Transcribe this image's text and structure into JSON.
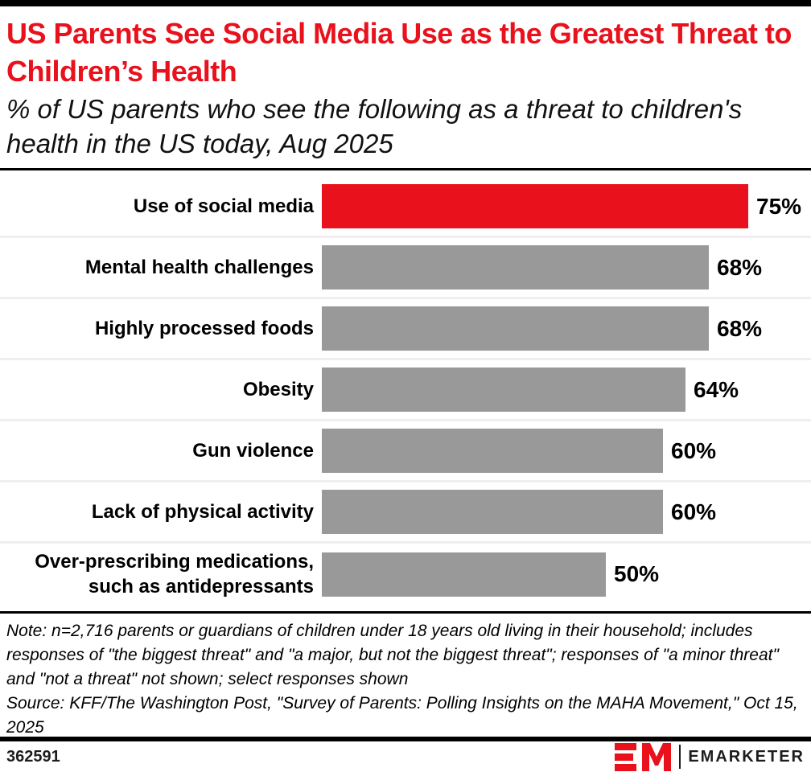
{
  "header": {
    "title": "US Parents See Social Media Use as the Greatest Threat to Children’s Health",
    "subtitle": "% of US parents who see the following as a threat to children's health in the US today, Aug 2025"
  },
  "chart_data": {
    "type": "bar",
    "orientation": "horizontal",
    "title": "US Parents See Social Media Use as the Greatest Threat to Children’s Health",
    "subtitle": "% of US parents who see the following as a threat to children's health in the US today, Aug 2025",
    "categories": [
      "Use of social media",
      "Mental health challenges",
      "Highly processed foods",
      "Obesity",
      "Gun violence",
      "Lack of physical activity",
      "Over-prescribing medications, such as antidepressants"
    ],
    "values": [
      75,
      68,
      68,
      64,
      60,
      60,
      50
    ],
    "value_labels": [
      "75%",
      "68%",
      "68%",
      "64%",
      "60%",
      "60%",
      "50%"
    ],
    "xlim": [
      0,
      100
    ],
    "axis_visible": false,
    "grid": false,
    "legend": false,
    "highlight_index": 0,
    "colors": {
      "highlight": "#e8111c",
      "default": "#999999"
    }
  },
  "footnotes": {
    "note": "Note: n=2,716 parents or guardians of children under 18 years old living in their household; includes responses of \"the biggest threat\" and \"a major, but not the biggest threat\"; responses of \"a minor threat\" and \"not a threat\" not shown; select responses shown",
    "source": "Source: KFF/The Washington Post, \"Survey of Parents: Polling Insights on the MAHA Movement,\" Oct 15, 2025"
  },
  "footer": {
    "chart_id": "362591",
    "brand": "EMARKETER"
  }
}
